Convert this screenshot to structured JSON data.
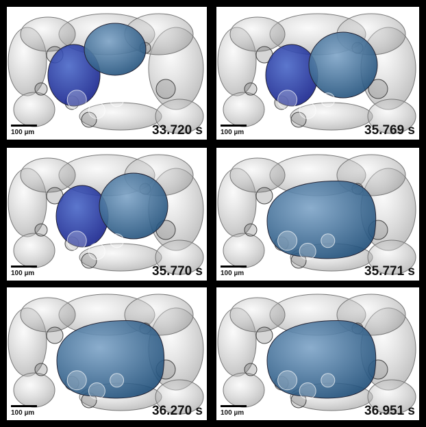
{
  "panels": [
    {
      "time": "33.720 s",
      "scale_label": "100 µm"
    },
    {
      "time": "35.769 s",
      "scale_label": "100 µm"
    },
    {
      "time": "35.770 s",
      "scale_label": "100 µm"
    },
    {
      "time": "35.771 s",
      "scale_label": "100 µm"
    },
    {
      "time": "36.270 s",
      "scale_label": "100 µm"
    },
    {
      "time": "36.951 s",
      "scale_label": "100 µm"
    }
  ]
}
